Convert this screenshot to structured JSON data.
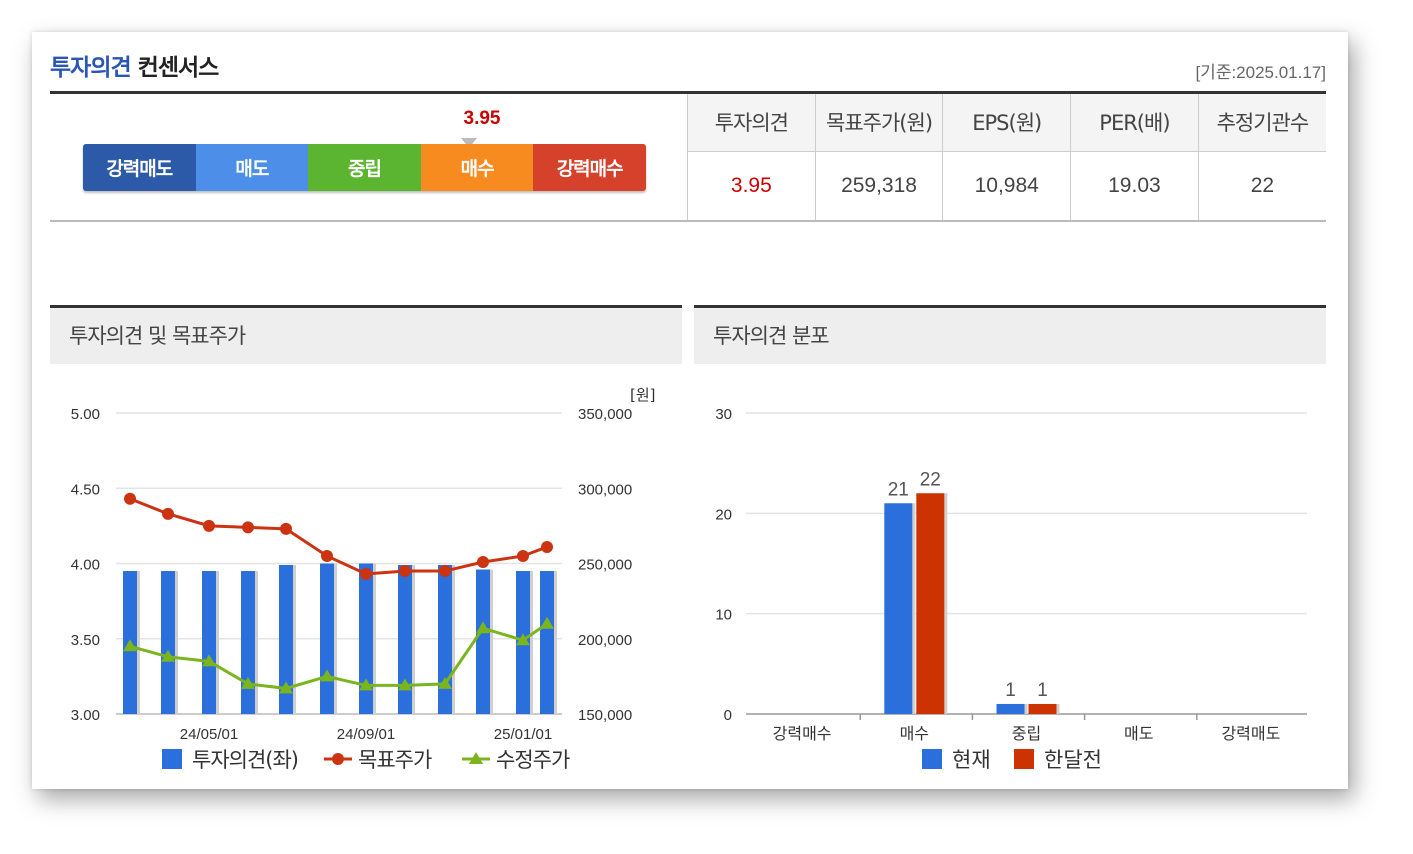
{
  "header": {
    "title_blue": "투자의견",
    "title_dark": "컨센서스",
    "date": "[기준:2025.01.17]"
  },
  "scale": {
    "value": "3.95",
    "value_num": 3.95,
    "labels": [
      "강력매도",
      "매도",
      "중립",
      "매수",
      "강력매수"
    ],
    "colors": [
      "#2d5aa8",
      "#4d8ee8",
      "#5cb531",
      "#f78b1f",
      "#d6412b"
    ]
  },
  "stats": {
    "headers": [
      "투자의견",
      "목표주가(원)",
      "EPS(원)",
      "PER(배)",
      "추정기관수"
    ],
    "values": [
      "3.95",
      "259,318",
      "10,984",
      "19.03",
      "22"
    ]
  },
  "panels": {
    "left_title": "투자의견 및 목표주가",
    "right_title": "투자의견 분포"
  },
  "chart_data": [
    {
      "type": "bar",
      "title": "투자의견 및 목표주가",
      "right_axis_unit": "[원]",
      "x_tick_labels": [
        "24/05/01",
        "24/09/01",
        "25/01/01"
      ],
      "x_tick_indices": [
        2,
        6,
        10
      ],
      "y_left": {
        "ticks": [
          "5.00",
          "4.50",
          "4.00",
          "3.50",
          "3.00"
        ],
        "min": 3.0,
        "max": 5.0
      },
      "y_right": {
        "ticks": [
          "350,000",
          "300,000",
          "250,000",
          "200,000",
          "150,000"
        ],
        "min": 150000,
        "max": 350000
      },
      "series": [
        {
          "name": "투자의견(좌)",
          "kind": "bar",
          "axis": "left",
          "color": "#2a6fdb",
          "values": [
            3.95,
            3.95,
            3.95,
            3.95,
            3.99,
            4.0,
            4.0,
            3.99,
            3.99,
            3.96,
            3.95,
            3.95
          ]
        },
        {
          "name": "목표주가",
          "kind": "line",
          "axis": "right",
          "color": "#cc3311",
          "values": [
            293000,
            283000,
            275000,
            274000,
            273000,
            255000,
            243000,
            245000,
            245000,
            251000,
            255000,
            261000
          ]
        },
        {
          "name": "수정주가",
          "kind": "line",
          "axis": "right",
          "color": "#7ab51d",
          "values": [
            195000,
            188000,
            185000,
            170000,
            167000,
            175000,
            169000,
            169000,
            170000,
            207000,
            199000,
            210000
          ]
        }
      ]
    },
    {
      "type": "bar",
      "title": "투자의견 분포",
      "categories": [
        "강력매수",
        "매수",
        "중립",
        "매도",
        "강력매도"
      ],
      "ylim": [
        0,
        30
      ],
      "y_ticks": [
        "30",
        "20",
        "10",
        "0"
      ],
      "series": [
        {
          "name": "현재",
          "color": "#2a6fdb",
          "values": [
            0,
            21,
            1,
            0,
            0
          ],
          "labels": [
            "",
            "21",
            "1",
            "",
            ""
          ]
        },
        {
          "name": "한달전",
          "color": "#cc3300",
          "values": [
            0,
            22,
            1,
            0,
            0
          ],
          "labels": [
            "",
            "22",
            "1",
            "",
            ""
          ]
        }
      ]
    }
  ]
}
